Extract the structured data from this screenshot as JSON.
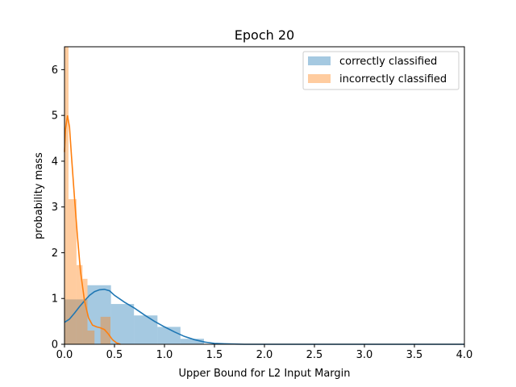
{
  "chart_data": {
    "type": "bar",
    "title": "Epoch  20",
    "xlabel": "Upper Bound for L2 Input Margin",
    "ylabel": "probability mass",
    "xlim": [
      0,
      4
    ],
    "ylim": [
      0,
      6.5
    ],
    "xticks": [
      "0.0",
      "0.5",
      "1.0",
      "1.5",
      "2.0",
      "2.5",
      "3.0",
      "3.5",
      "4.0"
    ],
    "yticks": [
      "0",
      "1",
      "2",
      "3",
      "4",
      "5",
      "6"
    ],
    "grid": false,
    "legend_position": "top-right",
    "colors": {
      "correct_hist": "#1f77b4",
      "incorrect_hist": "#ff7f0e"
    },
    "series": [
      {
        "name": "correctly classified",
        "histogram": [
          {
            "x0": 0.0,
            "x1": 0.23,
            "value": 0.98
          },
          {
            "x0": 0.23,
            "x1": 0.465,
            "value": 1.29
          },
          {
            "x0": 0.465,
            "x1": 0.695,
            "value": 0.88
          },
          {
            "x0": 0.695,
            "x1": 0.93,
            "value": 0.63
          },
          {
            "x0": 0.93,
            "x1": 1.16,
            "value": 0.38
          },
          {
            "x0": 1.16,
            "x1": 1.395,
            "value": 0.12
          }
        ],
        "kde": [
          [
            0.0,
            0.48
          ],
          [
            0.05,
            0.55
          ],
          [
            0.1,
            0.68
          ],
          [
            0.15,
            0.82
          ],
          [
            0.2,
            0.95
          ],
          [
            0.25,
            1.07
          ],
          [
            0.3,
            1.15
          ],
          [
            0.35,
            1.19
          ],
          [
            0.4,
            1.2
          ],
          [
            0.45,
            1.17
          ],
          [
            0.5,
            1.07
          ],
          [
            0.6,
            0.92
          ],
          [
            0.7,
            0.79
          ],
          [
            0.8,
            0.64
          ],
          [
            0.9,
            0.5
          ],
          [
            1.0,
            0.38
          ],
          [
            1.1,
            0.27
          ],
          [
            1.2,
            0.17
          ],
          [
            1.3,
            0.1
          ],
          [
            1.4,
            0.05
          ],
          [
            1.5,
            0.02
          ],
          [
            1.6,
            0.01
          ],
          [
            1.8,
            0.0
          ],
          [
            2.0,
            0.0
          ],
          [
            2.5,
            0.0
          ],
          [
            3.0,
            0.0
          ],
          [
            3.5,
            0.0
          ],
          [
            4.0,
            0.0
          ]
        ]
      },
      {
        "name": "incorrectly classified",
        "histogram": [
          {
            "x0": 0.0,
            "x1": 0.04,
            "value": 6.5
          },
          {
            "x0": 0.04,
            "x1": 0.12,
            "value": 3.17
          },
          {
            "x0": 0.12,
            "x1": 0.18,
            "value": 1.73
          },
          {
            "x0": 0.18,
            "x1": 0.23,
            "value": 1.43
          },
          {
            "x0": 0.23,
            "x1": 0.3,
            "value": 0.3
          },
          {
            "x0": 0.3,
            "x1": 0.36,
            "value": 0.0
          },
          {
            "x0": 0.36,
            "x1": 0.46,
            "value": 0.6
          }
        ],
        "kde": [
          [
            0.0,
            4.2
          ],
          [
            0.01,
            4.7
          ],
          [
            0.03,
            5.0
          ],
          [
            0.05,
            4.75
          ],
          [
            0.07,
            4.1
          ],
          [
            0.1,
            3.2
          ],
          [
            0.13,
            2.35
          ],
          [
            0.16,
            1.6
          ],
          [
            0.2,
            0.95
          ],
          [
            0.24,
            0.58
          ],
          [
            0.28,
            0.42
          ],
          [
            0.32,
            0.38
          ],
          [
            0.36,
            0.36
          ],
          [
            0.4,
            0.32
          ],
          [
            0.44,
            0.22
          ],
          [
            0.48,
            0.1
          ],
          [
            0.52,
            0.03
          ],
          [
            0.56,
            0.0
          ]
        ]
      }
    ]
  }
}
